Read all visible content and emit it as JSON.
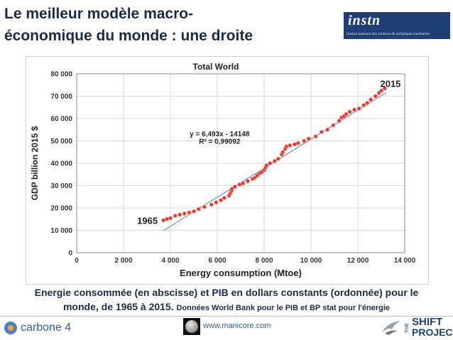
{
  "slide": {
    "title_line1": "Le meilleur modèle macro-",
    "title_line2": "économique du monde : une droite",
    "instn_logo": "instn",
    "instn_subtitle": "institut national des sciences & techniques nucléaires",
    "caption_line1": "Energie consommée (en abscisse) et PIB en dollars constants (ordonnée) pour le",
    "caption_line2": "monde, de 1965 à 2015.",
    "caption_source": "Données World Bank pour le PIB et BP stat pour l'énergie",
    "footer_left": "carbone 4",
    "footer_url": "www.manicore.com",
    "footer_right_small": "THE",
    "footer_right_line1": "SHIFT",
    "footer_right_line2": "PROJECT"
  },
  "colors": {
    "title": "#1b2a47",
    "points": "#e8332a",
    "trend": "#5a7fb5",
    "grid": "#d9d9d9",
    "brand_blue": "#1d3f73"
  },
  "chart_data": {
    "type": "scatter",
    "title": "Total World",
    "xlabel": "Energy consumption (Mtoe)",
    "ylabel": "GDP billion 2015 $",
    "xlim": [
      0,
      14000
    ],
    "ylim": [
      0,
      80000
    ],
    "xticks": [
      0,
      2000,
      4000,
      6000,
      8000,
      10000,
      12000,
      14000
    ],
    "yticks": [
      0,
      10000,
      20000,
      30000,
      40000,
      50000,
      60000,
      70000,
      80000
    ],
    "xtick_labels": [
      "0",
      "2 000",
      "4 000",
      "6 000",
      "8 000",
      "10 000",
      "12 000",
      "14 000"
    ],
    "ytick_labels": [
      "0",
      "10 000",
      "20 000",
      "30 000",
      "40 000",
      "50 000",
      "60 000",
      "70 000",
      "80 000"
    ],
    "grid": true,
    "equation": "y = 6,493x - 14148",
    "r_squared": "R² = 0,99092",
    "trendline": {
      "slope": 6.493,
      "intercept": -14148,
      "x_range": [
        3700,
        13200
      ]
    },
    "annotations": [
      {
        "label": "1965",
        "x": 3700,
        "y": 14500,
        "position": "left"
      },
      {
        "label": "2015",
        "x": 13150,
        "y": 73500,
        "position": "above"
      }
    ],
    "x": [
      3700,
      3850,
      4000,
      4200,
      4400,
      4600,
      4800,
      5000,
      5200,
      5450,
      5750,
      5950,
      6150,
      6300,
      6500,
      6550,
      6600,
      6620,
      6750,
      6950,
      7100,
      7300,
      7500,
      7600,
      7700,
      7800,
      7900,
      8000,
      8050,
      8100,
      8250,
      8450,
      8600,
      8750,
      8800,
      8900,
      8950,
      9100,
      9300,
      9450,
      9700,
      9900,
      10200,
      10450,
      10700,
      10950,
      11200,
      11300,
      11400,
      11500,
      11650,
      11850,
      12050,
      12250,
      12400,
      12550,
      12750,
      12900,
      13000,
      13150
    ],
    "y": [
      14500,
      15000,
      15500,
      16500,
      17000,
      17500,
      18000,
      18500,
      19500,
      20500,
      21500,
      22500,
      23500,
      24500,
      25500,
      26500,
      27500,
      28500,
      29500,
      30500,
      31000,
      32000,
      33000,
      33500,
      34500,
      35500,
      36000,
      37000,
      38000,
      39000,
      40000,
      41000,
      42000,
      44000,
      45000,
      46500,
      47500,
      48000,
      48500,
      49000,
      50000,
      51000,
      52000,
      54000,
      55000,
      57000,
      59000,
      60500,
      61000,
      62000,
      63000,
      64000,
      64500,
      66000,
      67000,
      68500,
      70000,
      71500,
      72500,
      73500
    ]
  }
}
